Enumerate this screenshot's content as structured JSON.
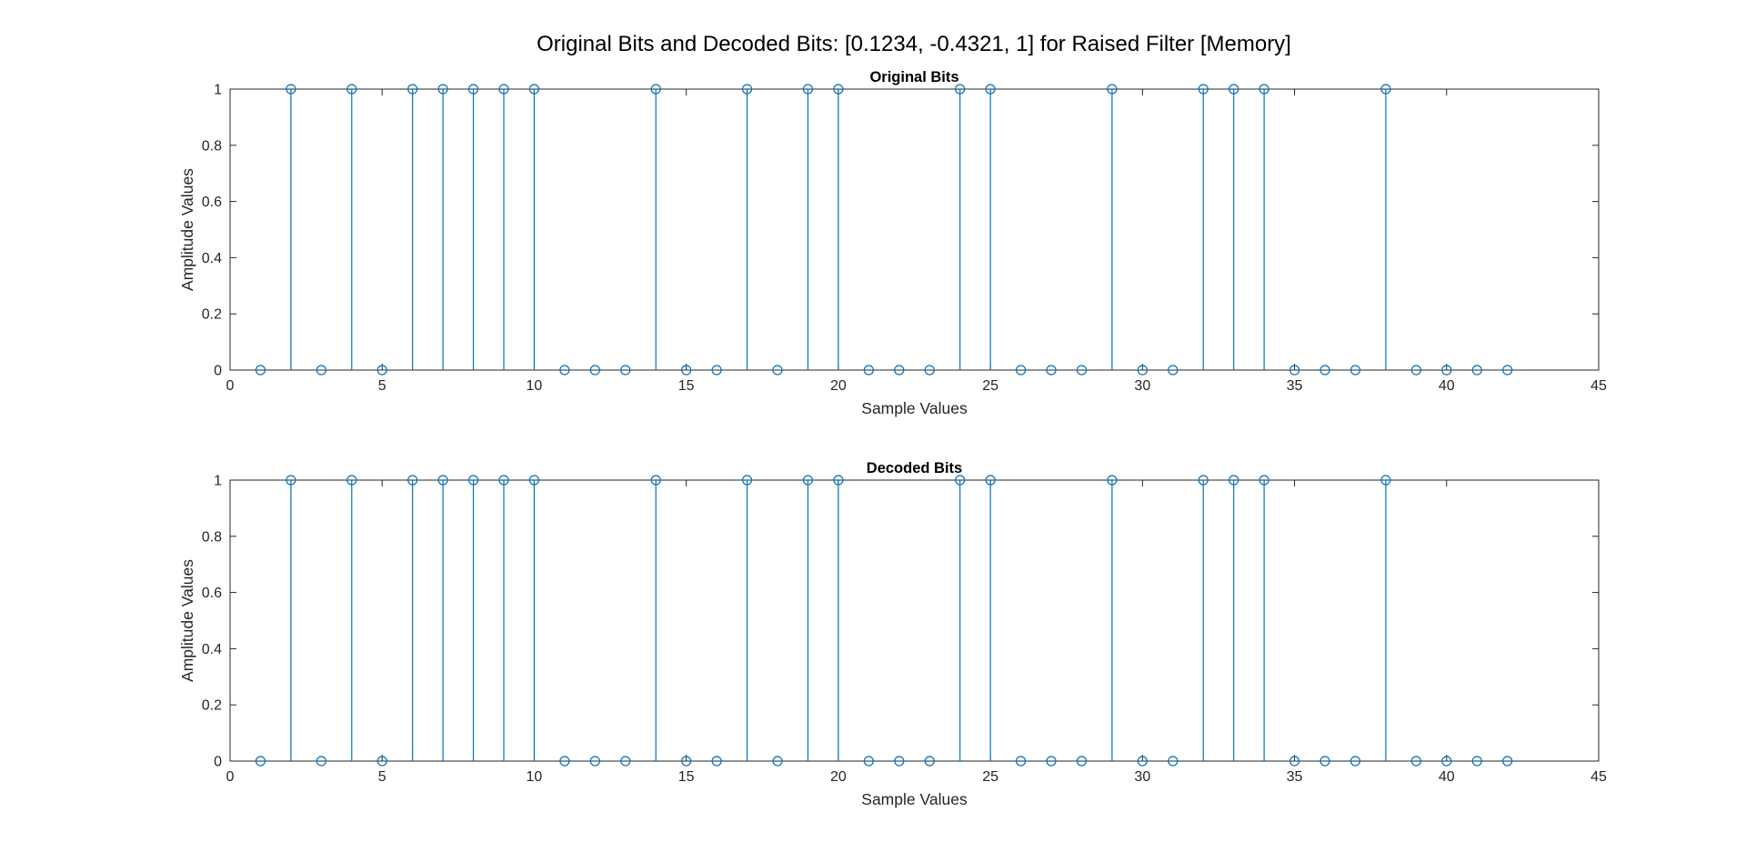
{
  "figure_title": "Original Bits and Decoded Bits: [0.1234, -0.4321, 1] for Raised Filter [Memory]",
  "colors": {
    "stem": "#0072BD",
    "axis": "#262626",
    "background": "#ffffff"
  },
  "chart_data": [
    {
      "type": "stem",
      "title": "Original Bits",
      "xlabel": "Sample Values",
      "ylabel": "Amplitude Values",
      "xlim": [
        0,
        45
      ],
      "ylim": [
        0,
        1
      ],
      "xticks": [
        0,
        5,
        10,
        15,
        20,
        25,
        30,
        35,
        40,
        45
      ],
      "yticks": [
        0,
        0.2,
        0.4,
        0.6,
        0.8,
        1
      ],
      "x": [
        1,
        2,
        3,
        4,
        5,
        6,
        7,
        8,
        9,
        10,
        11,
        12,
        13,
        14,
        15,
        16,
        17,
        18,
        19,
        20,
        21,
        22,
        23,
        24,
        25,
        26,
        27,
        28,
        29,
        30,
        31,
        32,
        33,
        34,
        35,
        36,
        37,
        38,
        39,
        40,
        41,
        42
      ],
      "values": [
        0,
        1,
        0,
        1,
        0,
        1,
        1,
        1,
        1,
        1,
        0,
        0,
        0,
        1,
        0,
        0,
        1,
        0,
        1,
        1,
        0,
        0,
        0,
        1,
        1,
        0,
        0,
        0,
        1,
        0,
        0,
        1,
        1,
        1,
        0,
        0,
        0,
        1,
        0,
        0,
        0,
        0
      ],
      "grid": false
    },
    {
      "type": "stem",
      "title": "Decoded Bits",
      "xlabel": "Sample Values",
      "ylabel": "Amplitude Values",
      "xlim": [
        0,
        45
      ],
      "ylim": [
        0,
        1
      ],
      "xticks": [
        0,
        5,
        10,
        15,
        20,
        25,
        30,
        35,
        40,
        45
      ],
      "yticks": [
        0,
        0.2,
        0.4,
        0.6,
        0.8,
        1
      ],
      "x": [
        1,
        2,
        3,
        4,
        5,
        6,
        7,
        8,
        9,
        10,
        11,
        12,
        13,
        14,
        15,
        16,
        17,
        18,
        19,
        20,
        21,
        22,
        23,
        24,
        25,
        26,
        27,
        28,
        29,
        30,
        31,
        32,
        33,
        34,
        35,
        36,
        37,
        38,
        39,
        40,
        41,
        42
      ],
      "values": [
        0,
        1,
        0,
        1,
        0,
        1,
        1,
        1,
        1,
        1,
        0,
        0,
        0,
        1,
        0,
        0,
        1,
        0,
        1,
        1,
        0,
        0,
        0,
        1,
        1,
        0,
        0,
        0,
        1,
        0,
        0,
        1,
        1,
        1,
        0,
        0,
        0,
        1,
        0,
        0,
        0,
        0
      ],
      "grid": false
    }
  ]
}
